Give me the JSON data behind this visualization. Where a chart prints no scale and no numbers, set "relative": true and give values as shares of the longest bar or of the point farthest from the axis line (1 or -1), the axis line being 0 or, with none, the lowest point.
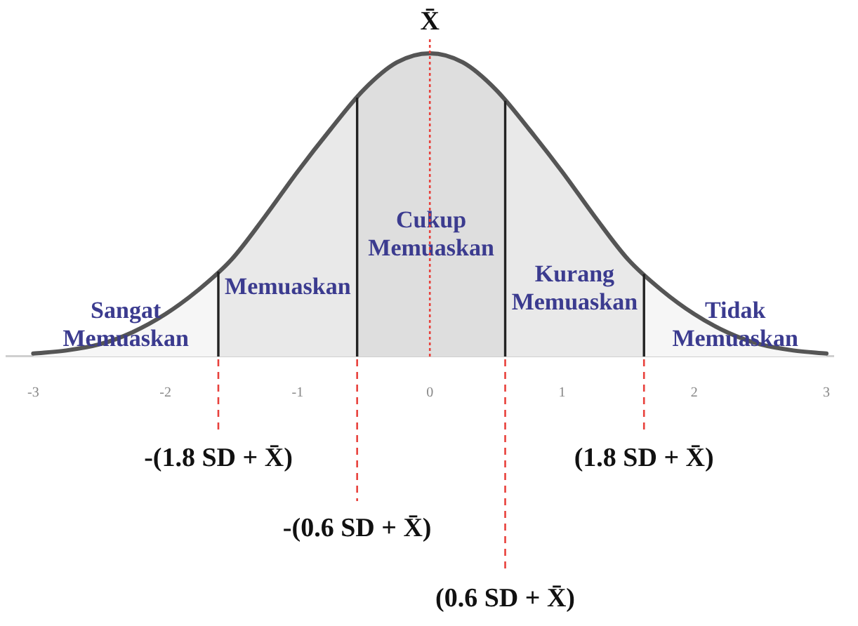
{
  "chart_data": {
    "type": "line",
    "relative": true,
    "x": [
      -3,
      -2.75,
      -2.5,
      -2.25,
      -2,
      -1.75,
      -1.5,
      -1.25,
      -1,
      -0.75,
      -0.5,
      -0.25,
      0,
      0.25,
      0.5,
      0.75,
      1,
      1.25,
      1.5,
      1.75,
      2,
      2.25,
      2.5,
      2.75,
      3
    ],
    "series": [
      {
        "color": "#555555",
        "values": [
          0.01,
          0.02,
          0.04,
          0.08,
          0.14,
          0.22,
          0.32,
          0.46,
          0.61,
          0.75,
          0.88,
          0.97,
          1,
          0.97,
          0.88,
          0.75,
          0.61,
          0.46,
          0.32,
          0.22,
          0.14,
          0.08,
          0.04,
          0.02,
          0.01
        ]
      }
    ],
    "xlim": [
      -3.2,
      3.05
    ],
    "xticks": [
      -3,
      -2,
      -1,
      0,
      1,
      2,
      3
    ],
    "bands": [
      {
        "axis": "x",
        "from": -3,
        "to": -1.6,
        "label": "Sangat Memuaskan",
        "color": "#f6f6f6"
      },
      {
        "axis": "x",
        "from": -1.6,
        "to": -0.55,
        "label": "Memuaskan",
        "color": "#e9e9e9"
      },
      {
        "axis": "x",
        "from": -0.55,
        "to": 0.57,
        "label": "Cukup Memuaskan",
        "color": "#dedede"
      },
      {
        "axis": "x",
        "from": 0.57,
        "to": 1.62,
        "label": "Kurang Memuaskan",
        "color": "#e9e9e9"
      },
      {
        "axis": "x",
        "from": 1.62,
        "to": 3,
        "label": "Tidak Memuaskan",
        "color": "#f6f6f6"
      }
    ],
    "ref_lines": [
      {
        "axis": "x",
        "value": 0,
        "label": "X̄",
        "color": "#e8413c",
        "line_style": "dotted"
      },
      {
        "axis": "x",
        "value": -1.6,
        "label": "-(1.8 SD + X̄)",
        "color": "#222222",
        "line_style": "solid"
      },
      {
        "axis": "x",
        "value": 1.62,
        "label": "(1.8 SD + X̄)",
        "color": "#222222",
        "line_style": "solid"
      },
      {
        "axis": "x",
        "value": -0.55,
        "label": "-(0.6 SD + X̄)",
        "color": "#222222",
        "line_style": "solid"
      },
      {
        "axis": "x",
        "value": 0.57,
        "label": "(0.6 SD + X̄)",
        "color": "#222222",
        "line_style": "solid"
      }
    ]
  }
}
